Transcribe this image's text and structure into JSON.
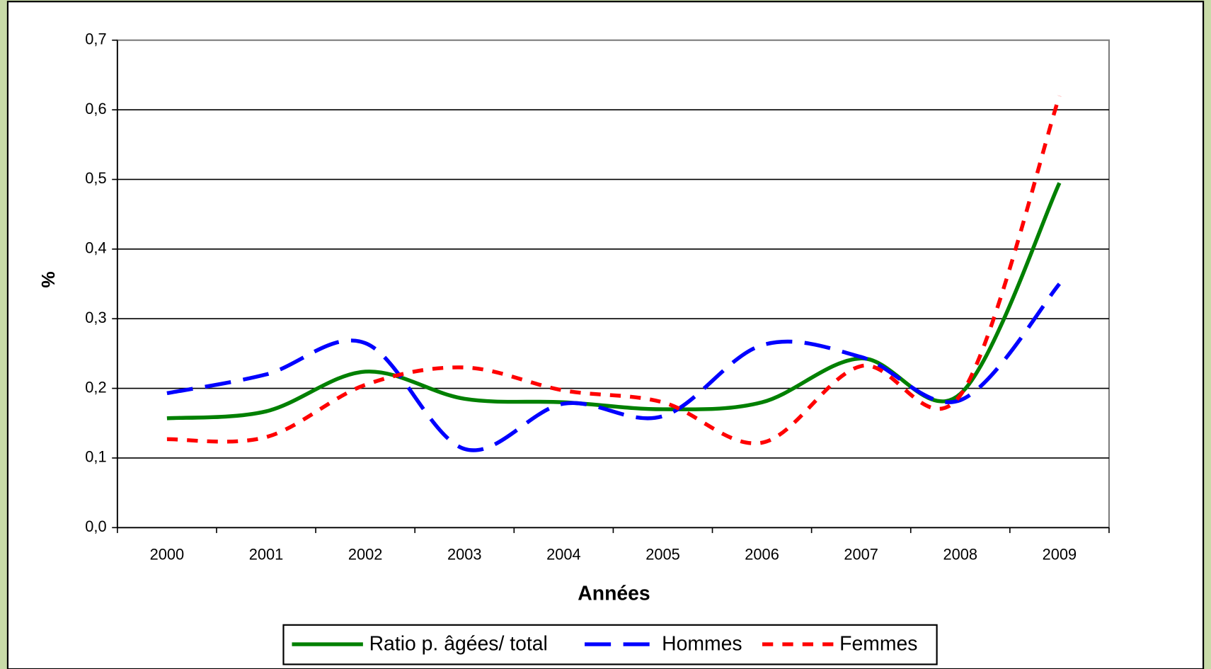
{
  "chart_data": {
    "type": "line",
    "x_label": "Années",
    "y_label": "%",
    "categories": [
      "2000",
      "2001",
      "2002",
      "2003",
      "2004",
      "2005",
      "2006",
      "2007",
      "2008",
      "2009"
    ],
    "series": [
      {
        "name": "Ratio p. âgées/ total",
        "color": "#008000",
        "dash": "solid",
        "values": [
          0.157,
          0.167,
          0.224,
          0.185,
          0.18,
          0.17,
          0.18,
          0.243,
          0.192,
          0.495
        ]
      },
      {
        "name": "Hommes",
        "color": "#0000ff",
        "dash": "long",
        "values": [
          0.193,
          0.22,
          0.265,
          0.113,
          0.178,
          0.16,
          0.262,
          0.245,
          0.183,
          0.35
        ]
      },
      {
        "name": "Femmes",
        "color": "#ff0000",
        "dash": "short",
        "values": [
          0.127,
          0.13,
          0.205,
          0.23,
          0.197,
          0.18,
          0.122,
          0.232,
          0.19,
          0.62
        ]
      }
    ],
    "ylim": [
      0,
      0.7
    ],
    "yticks": [
      {
        "value": 0,
        "label": "0,0"
      },
      {
        "value": 0.1,
        "label": "0,1"
      },
      {
        "value": 0.2,
        "label": "0,2"
      },
      {
        "value": 0.3,
        "label": "0,3"
      },
      {
        "value": 0.4,
        "label": "0,4"
      },
      {
        "value": 0.5,
        "label": "0,5"
      },
      {
        "value": 0.6,
        "label": "0,6"
      },
      {
        "value": 0.7,
        "label": "0,7"
      }
    ],
    "grid": true,
    "legend": "bottom"
  }
}
